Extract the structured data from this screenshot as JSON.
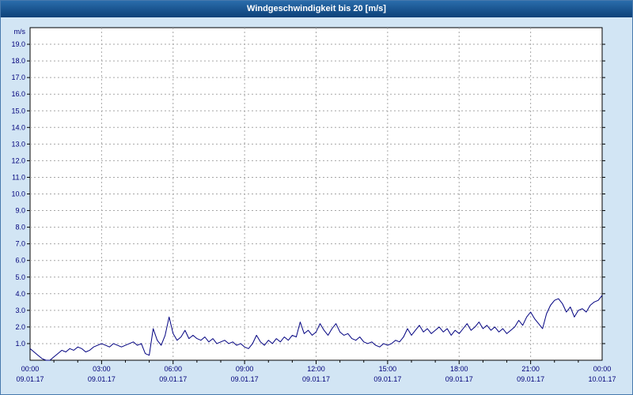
{
  "window": {
    "title": "Windgeschwindigkeit bis 20 [m/s]"
  },
  "colors": {
    "title_bar_top": "#2a6cab",
    "title_bar_bottom": "#0c4178",
    "background": "#d2e5f4",
    "plot_background": "#ffffff",
    "plot_border": "#000000",
    "grid": "#a6a6a6",
    "axis_text": "#00007a",
    "line": "#000080",
    "window_border": "#4779ad"
  },
  "chart_data": {
    "type": "line",
    "title": "Windgeschwindigkeit bis 20 [m/s]",
    "xlabel": "",
    "ylabel": "m/s",
    "ylim": [
      0,
      20
    ],
    "y_tick_step": 1.0,
    "grid": true,
    "legend": "none",
    "y_tick_labels": [
      "19.0",
      "18.0",
      "17.0",
      "16.0",
      "15.0",
      "14.0",
      "13.0",
      "12.0",
      "11.0",
      "10.0",
      "9.0",
      "8.0",
      "7.0",
      "6.0",
      "5.0",
      "4.0",
      "3.0",
      "2.0",
      "1.0"
    ],
    "x_tick_times": [
      "00:00",
      "03:00",
      "06:00",
      "09:00",
      "12:00",
      "15:00",
      "18:00",
      "21:00",
      "00:00"
    ],
    "x_tick_dates": [
      "09.01.17",
      "09.01.17",
      "09.01.17",
      "09.01.17",
      "09.01.17",
      "09.01.17",
      "09.01.17",
      "09.01.17",
      "10.01.17"
    ],
    "x_range_minutes": 1440,
    "x_step_minutes": 10,
    "series": [
      {
        "name": "Windgeschwindigkeit",
        "unit": "m/s",
        "color": "#000080",
        "values": [
          0.7,
          0.5,
          0.3,
          0.1,
          0.0,
          0.0,
          0.2,
          0.4,
          0.6,
          0.5,
          0.7,
          0.6,
          0.8,
          0.7,
          0.5,
          0.6,
          0.8,
          0.9,
          1.0,
          0.9,
          0.8,
          1.0,
          0.9,
          0.8,
          0.9,
          1.0,
          1.1,
          0.9,
          1.0,
          0.4,
          0.3,
          1.9,
          1.2,
          0.9,
          1.5,
          2.6,
          1.6,
          1.2,
          1.4,
          1.8,
          1.3,
          1.5,
          1.3,
          1.2,
          1.4,
          1.1,
          1.3,
          1.0,
          1.1,
          1.2,
          1.0,
          1.1,
          0.9,
          1.0,
          0.8,
          0.7,
          1.0,
          1.5,
          1.1,
          0.9,
          1.2,
          1.0,
          1.3,
          1.1,
          1.4,
          1.2,
          1.5,
          1.4,
          2.3,
          1.6,
          1.8,
          1.5,
          1.7,
          2.2,
          1.8,
          1.5,
          1.9,
          2.2,
          1.7,
          1.5,
          1.6,
          1.3,
          1.2,
          1.4,
          1.1,
          1.0,
          1.1,
          0.9,
          0.8,
          1.0,
          0.9,
          1.0,
          1.2,
          1.1,
          1.4,
          1.9,
          1.5,
          1.8,
          2.1,
          1.7,
          1.9,
          1.6,
          1.8,
          2.0,
          1.7,
          1.9,
          1.5,
          1.8,
          1.6,
          1.9,
          2.2,
          1.8,
          2.0,
          2.3,
          1.9,
          2.1,
          1.8,
          2.0,
          1.7,
          1.9,
          1.6,
          1.8,
          2.0,
          2.4,
          2.1,
          2.6,
          2.9,
          2.5,
          2.2,
          1.9,
          2.8,
          3.3,
          3.6,
          3.7,
          3.4,
          2.9,
          3.2,
          2.6,
          3.0,
          3.1,
          2.9,
          3.3,
          3.5,
          3.6,
          3.9
        ]
      }
    ]
  }
}
